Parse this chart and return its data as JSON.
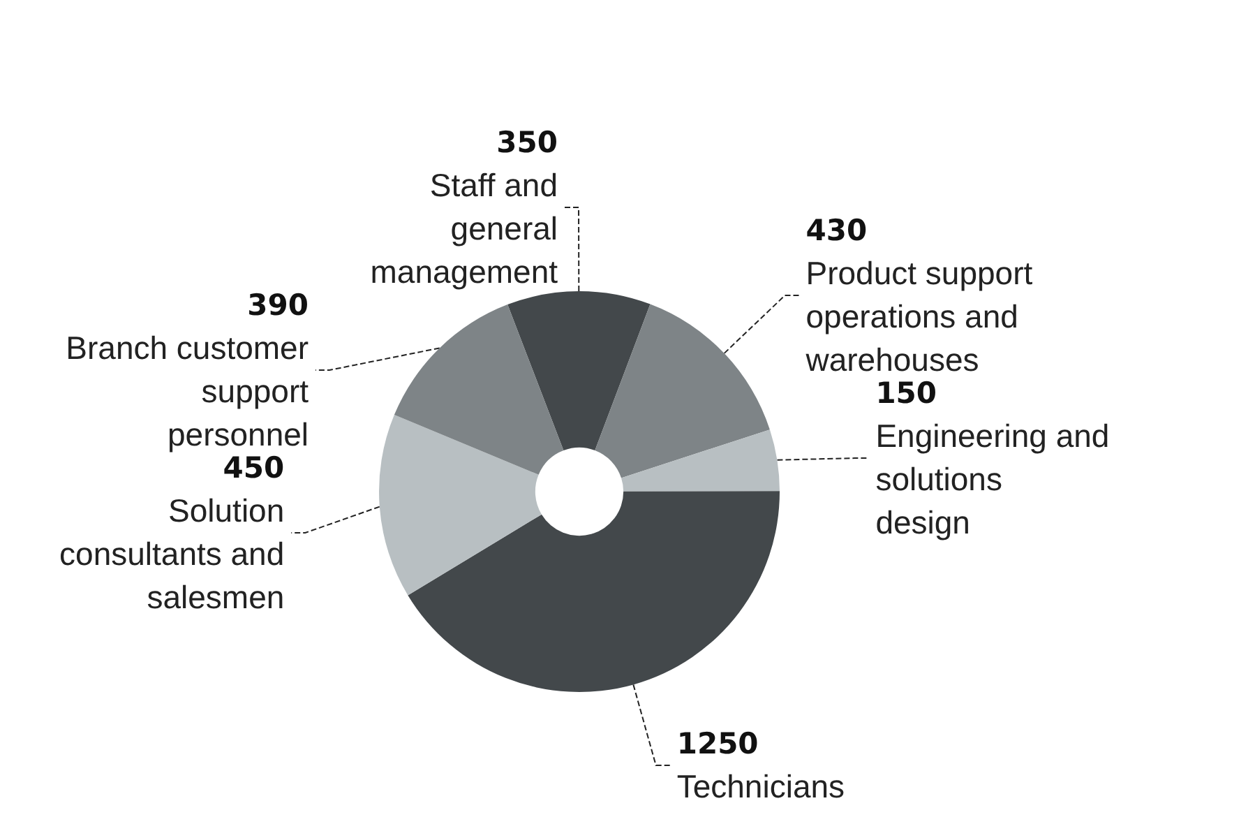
{
  "chart_data": {
    "type": "donut",
    "categories": [
      "Staff and general management",
      "Product support operations and warehouses",
      "Engineering and solutions design",
      "Technicians",
      "Solution consultants and salesmen",
      "Branch customer support personnel"
    ],
    "values": [
      350,
      430,
      150,
      1250,
      450,
      390
    ],
    "colors": [
      "#43484b",
      "#7e8487",
      "#b8bfc2",
      "#43484b",
      "#b8bfc2",
      "#7e8487"
    ],
    "data_labels": true,
    "legend": false
  }
}
